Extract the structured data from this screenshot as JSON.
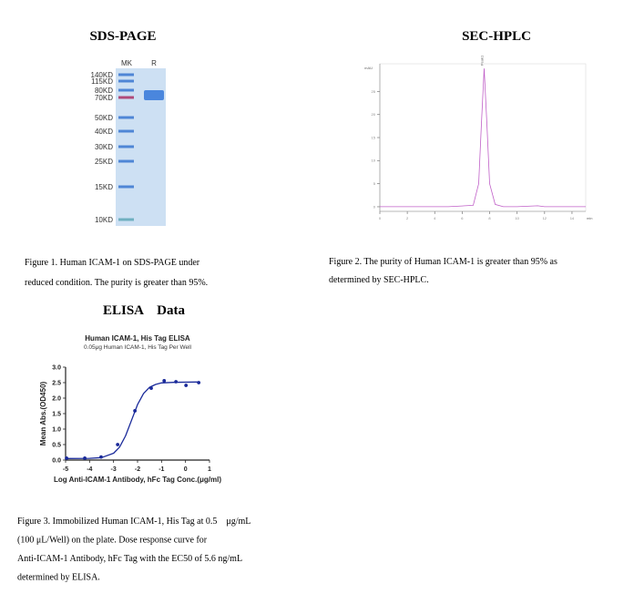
{
  "sds_page": {
    "title": "SDS-PAGE",
    "lanes": [
      "MK",
      "R"
    ],
    "markers": [
      "140KD",
      "115KD",
      "80KD",
      "70KD",
      "50KD",
      "40KD",
      "30KD",
      "25KD",
      "15KD",
      "10KD"
    ],
    "caption": [
      "Figure 1. Human ICAM-1 on SDS-PAGE under",
      "reduced condition. The purity is greater than 95%."
    ]
  },
  "sec_hplc": {
    "title": "SEC-HPLC",
    "caption": [
      "Figure 2. The purity of Human ICAM-1 is greater than 95% as",
      "determined by SEC-HPLC."
    ]
  },
  "elisa": {
    "title": "ELISA    Data",
    "caption": [
      "Figure 3. Immobilized Human ICAM-1, His Tag at 0.5　μg/mL",
      "(100 μL/Well) on the plate. Dose response curve for",
      "Anti-ICAM-1 Antibody, hFc Tag with the EC50 of 5.6 ng/mL",
      "determined by ELISA."
    ]
  },
  "chart_data": [
    {
      "type": "line",
      "y_label": "mAU",
      "x_label": "min",
      "annotation": "Peak1",
      "color": "#c060c8",
      "x": [
        0,
        5,
        6.8,
        7.2,
        7.4,
        7.6,
        7.8,
        8.0,
        8.4,
        9,
        10,
        11.5,
        12,
        15
      ],
      "values": [
        0,
        0,
        0.3,
        5,
        18,
        30,
        18,
        5,
        0.5,
        0,
        0,
        0.2,
        0,
        0
      ],
      "xlim": [
        0,
        15
      ],
      "xticks": [
        0,
        2,
        4,
        6,
        8,
        10,
        12,
        14
      ],
      "ylim": [
        -1,
        31
      ],
      "yticks": [
        0,
        5,
        10,
        15,
        20,
        25
      ]
    },
    {
      "type": "scatter",
      "title": "Human ICAM-1, His Tag ELISA",
      "subtitle": "0.05μg Human ICAM-1, His Tag Per Well",
      "x_label": "Log Anti-ICAM-1 Antibody, hFc Tag Conc.(μg/ml)",
      "y_label": "Mean Abs.(OD450)",
      "color": "#1a2a9a",
      "x": [
        -4.96,
        -4.2,
        -3.52,
        -2.83,
        -2.11,
        -1.43,
        -0.89,
        -0.4,
        0.02,
        0.55
      ],
      "values": [
        0.06,
        0.06,
        0.1,
        0.5,
        1.59,
        2.32,
        2.56,
        2.53,
        2.41,
        2.5
      ],
      "curve": {
        "x": [
          -5,
          -4,
          -3.5,
          -3,
          -2.75,
          -2.5,
          -2.25,
          -2,
          -1.75,
          -1.5,
          -1.25,
          -1,
          -0.5,
          0.5
        ],
        "values": [
          0.05,
          0.056,
          0.08,
          0.22,
          0.42,
          0.78,
          1.285,
          1.79,
          2.15,
          2.35,
          2.44,
          2.49,
          2.51,
          2.52
        ]
      },
      "xlim": [
        -5,
        1
      ],
      "xticks": [
        -5,
        -4,
        -3,
        -2,
        -1,
        0,
        1
      ],
      "ylim": [
        0,
        3
      ],
      "yticks": [
        {
          "value": 0,
          "label": "0.0"
        },
        0.5,
        {
          "value": 1,
          "label": "1.0"
        },
        1.5,
        {
          "value": 2,
          "label": "2.0"
        },
        2.5,
        {
          "value": 3,
          "label": "3.0"
        }
      ]
    }
  ]
}
